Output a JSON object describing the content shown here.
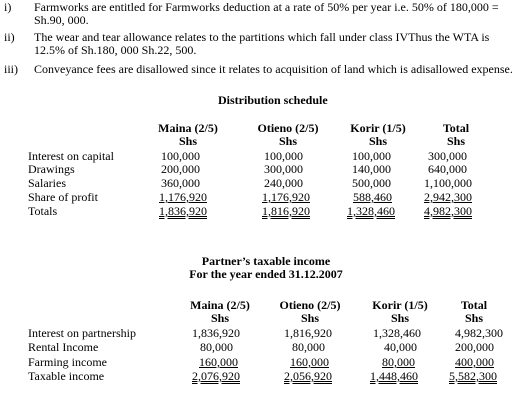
{
  "notes": [
    {
      "marker": "i)",
      "text": "Farmworks are entitled for Farmworks deduction at a rate of 50% per year i.e. 50% of 180,000 = Sh.90, 000."
    },
    {
      "marker": "ii)",
      "text": "The wear and tear allowance relates to the partitions which fall under class IVThus the WTA is 12.5% of Sh.180, 000 Sh.22, 500."
    },
    {
      "marker": "iii)",
      "text": "Conveyance fees are disallowed since it relates to acquisition of land which is adisallowed expense."
    }
  ],
  "distribution": {
    "title": "Distribution schedule",
    "columns": [
      {
        "name": "Maina (2/5)",
        "unit": "Shs"
      },
      {
        "name": "Otieno (2/5)",
        "unit": "Shs"
      },
      {
        "name": "Korir (1/5)",
        "unit": "Shs"
      },
      {
        "name": "Total",
        "unit": "Shs"
      }
    ],
    "rows": [
      {
        "label": "Interest on capital",
        "values": [
          "100,000",
          "100,000",
          "100,000",
          "300,000"
        ]
      },
      {
        "label": "Drawings",
        "values": [
          "200,000",
          "300,000",
          "140,000",
          "640,000"
        ]
      },
      {
        "label": "Salaries",
        "values": [
          "360,000",
          "240,000",
          "500,000",
          "1,100,000"
        ]
      },
      {
        "label": "Share of profit",
        "values": [
          "1,176,920",
          "1,176,920",
          "588,460",
          "2,942,300"
        ]
      },
      {
        "label": "Totals",
        "values": [
          "1,836,920",
          "1,816,920",
          "1,328,460",
          "4,982,300"
        ]
      }
    ]
  },
  "taxable": {
    "title_line1": "Partner’s taxable income",
    "title_line2": "For the year ended 31.12.2007",
    "columns": [
      {
        "name": "Maina (2/5)",
        "unit": "Shs"
      },
      {
        "name": "Otieno (2/5)",
        "unit": "Shs"
      },
      {
        "name": "Korir (1/5)",
        "unit": "Shs"
      },
      {
        "name": "Total",
        "unit": "Shs"
      }
    ],
    "rows": [
      {
        "label": "Interest on partnership",
        "values": [
          "1,836,920",
          "1,816,920",
          "1,328,460",
          "4,982,300"
        ]
      },
      {
        "label": "Rental Income",
        "values": [
          "80,000",
          "80,000",
          "40,000",
          "200,000"
        ]
      },
      {
        "label": "Farming income",
        "values": [
          "160,000",
          "160,000",
          "80,000",
          "400,000"
        ]
      },
      {
        "label": "Taxable income",
        "values": [
          "2,076,920",
          "2,056,920",
          "1,448,460",
          "5,582,300"
        ]
      }
    ]
  }
}
